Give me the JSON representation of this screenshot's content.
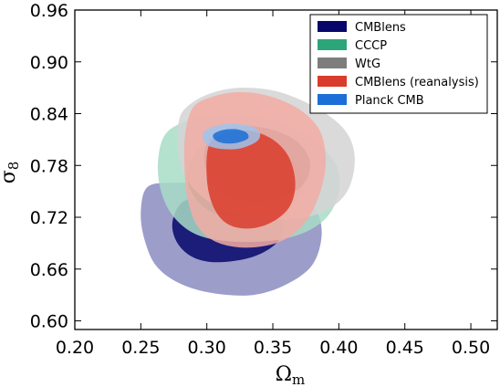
{
  "chart_data": {
    "type": "contour",
    "xlabel": "Ω",
    "xlabel_sub": "m",
    "ylabel": "σ",
    "ylabel_sub": "8",
    "xlim": [
      0.2,
      0.52
    ],
    "ylim": [
      0.59,
      0.96
    ],
    "x_ticks": [
      "0.20",
      "0.25",
      "0.30",
      "0.35",
      "0.40",
      "0.45",
      "0.50"
    ],
    "x_tick_values": [
      0.2,
      0.25,
      0.3,
      0.35,
      0.4,
      0.45,
      0.5
    ],
    "y_ticks": [
      "0.60",
      "0.66",
      "0.72",
      "0.78",
      "0.84",
      "0.90",
      "0.96"
    ],
    "y_tick_values": [
      0.6,
      0.66,
      0.72,
      0.78,
      0.84,
      0.9,
      0.96
    ],
    "legend_position": "top-right",
    "series": [
      {
        "name": "CMBlens",
        "color": "#06066b",
        "light_color": "#8b8cc0",
        "contour_outer": [
          [
            0.255,
            0.755
          ],
          [
            0.275,
            0.76
          ],
          [
            0.3,
            0.758
          ],
          [
            0.335,
            0.752
          ],
          [
            0.365,
            0.745
          ],
          [
            0.382,
            0.73
          ],
          [
            0.387,
            0.7
          ],
          [
            0.38,
            0.665
          ],
          [
            0.36,
            0.642
          ],
          [
            0.335,
            0.63
          ],
          [
            0.305,
            0.632
          ],
          [
            0.28,
            0.643
          ],
          [
            0.262,
            0.663
          ],
          [
            0.253,
            0.693
          ],
          [
            0.25,
            0.725
          ]
        ],
        "contour_inner": [
          [
            0.282,
            0.738
          ],
          [
            0.3,
            0.742
          ],
          [
            0.322,
            0.74
          ],
          [
            0.342,
            0.733
          ],
          [
            0.356,
            0.718
          ],
          [
            0.357,
            0.7
          ],
          [
            0.348,
            0.684
          ],
          [
            0.33,
            0.672
          ],
          [
            0.305,
            0.668
          ],
          [
            0.288,
            0.675
          ],
          [
            0.277,
            0.692
          ],
          [
            0.274,
            0.715
          ]
        ]
      },
      {
        "name": "CCCP",
        "color": "#2ca57b",
        "light_color": "#a8dcc7",
        "contour_outer": [
          [
            0.268,
            0.815
          ],
          [
            0.282,
            0.83
          ],
          [
            0.302,
            0.838
          ],
          [
            0.33,
            0.837
          ],
          [
            0.358,
            0.828
          ],
          [
            0.382,
            0.808
          ],
          [
            0.398,
            0.78
          ],
          [
            0.4,
            0.75
          ],
          [
            0.392,
            0.722
          ],
          [
            0.375,
            0.703
          ],
          [
            0.35,
            0.693
          ],
          [
            0.318,
            0.692
          ],
          [
            0.292,
            0.7
          ],
          [
            0.274,
            0.722
          ],
          [
            0.265,
            0.752
          ],
          [
            0.263,
            0.785
          ]
        ],
        "contour_inner": [
          [
            0.295,
            0.8
          ],
          [
            0.315,
            0.808
          ],
          [
            0.34,
            0.805
          ],
          [
            0.36,
            0.792
          ],
          [
            0.372,
            0.77
          ],
          [
            0.37,
            0.745
          ],
          [
            0.355,
            0.727
          ],
          [
            0.33,
            0.72
          ],
          [
            0.305,
            0.725
          ],
          [
            0.29,
            0.745
          ],
          [
            0.285,
            0.772
          ]
        ]
      },
      {
        "name": "WtG",
        "color": "#7d7d7d",
        "light_color": "#d4d4d4",
        "contour_outer": [
          [
            0.283,
            0.845
          ],
          [
            0.3,
            0.862
          ],
          [
            0.325,
            0.87
          ],
          [
            0.355,
            0.865
          ],
          [
            0.385,
            0.845
          ],
          [
            0.405,
            0.82
          ],
          [
            0.412,
            0.79
          ],
          [
            0.408,
            0.755
          ],
          [
            0.395,
            0.732
          ],
          [
            0.375,
            0.72
          ],
          [
            0.348,
            0.718
          ],
          [
            0.32,
            0.725
          ],
          [
            0.298,
            0.742
          ],
          [
            0.283,
            0.768
          ],
          [
            0.278,
            0.8
          ],
          [
            0.278,
            0.825
          ]
        ],
        "contour_inner": [
          [
            0.305,
            0.815
          ],
          [
            0.325,
            0.825
          ],
          [
            0.348,
            0.822
          ],
          [
            0.368,
            0.808
          ],
          [
            0.378,
            0.785
          ],
          [
            0.374,
            0.76
          ],
          [
            0.358,
            0.743
          ],
          [
            0.335,
            0.738
          ],
          [
            0.315,
            0.745
          ],
          [
            0.302,
            0.765
          ],
          [
            0.298,
            0.792
          ]
        ]
      },
      {
        "name": "CMBlens (reanalysis)",
        "color": "#d93c2c",
        "light_color": "#f2aba3",
        "contour_outer": [
          [
            0.29,
            0.848
          ],
          [
            0.305,
            0.86
          ],
          [
            0.325,
            0.865
          ],
          [
            0.348,
            0.86
          ],
          [
            0.37,
            0.845
          ],
          [
            0.385,
            0.822
          ],
          [
            0.39,
            0.79
          ],
          [
            0.387,
            0.755
          ],
          [
            0.378,
            0.722
          ],
          [
            0.365,
            0.7
          ],
          [
            0.348,
            0.688
          ],
          [
            0.325,
            0.685
          ],
          [
            0.305,
            0.693
          ],
          [
            0.292,
            0.712
          ],
          [
            0.285,
            0.745
          ],
          [
            0.283,
            0.785
          ],
          [
            0.284,
            0.82
          ]
        ],
        "contour_inner": [
          [
            0.302,
            0.805
          ],
          [
            0.316,
            0.818
          ],
          [
            0.333,
            0.82
          ],
          [
            0.35,
            0.81
          ],
          [
            0.362,
            0.79
          ],
          [
            0.367,
            0.76
          ],
          [
            0.363,
            0.733
          ],
          [
            0.35,
            0.715
          ],
          [
            0.333,
            0.707
          ],
          [
            0.316,
            0.712
          ],
          [
            0.305,
            0.732
          ],
          [
            0.3,
            0.765
          ]
        ]
      },
      {
        "name": "Planck CMB",
        "color": "#1b6fd6",
        "light_color": "#9fc3ec",
        "contour_outer": [
          [
            0.297,
            0.817
          ],
          [
            0.305,
            0.825
          ],
          [
            0.318,
            0.828
          ],
          [
            0.332,
            0.826
          ],
          [
            0.34,
            0.818
          ],
          [
            0.338,
            0.808
          ],
          [
            0.326,
            0.8
          ],
          [
            0.312,
            0.799
          ],
          [
            0.3,
            0.804
          ]
        ],
        "contour_inner": [
          [
            0.305,
            0.816
          ],
          [
            0.312,
            0.821
          ],
          [
            0.322,
            0.822
          ],
          [
            0.33,
            0.818
          ],
          [
            0.331,
            0.811
          ],
          [
            0.322,
            0.806
          ],
          [
            0.312,
            0.806
          ],
          [
            0.306,
            0.81
          ]
        ]
      }
    ]
  }
}
